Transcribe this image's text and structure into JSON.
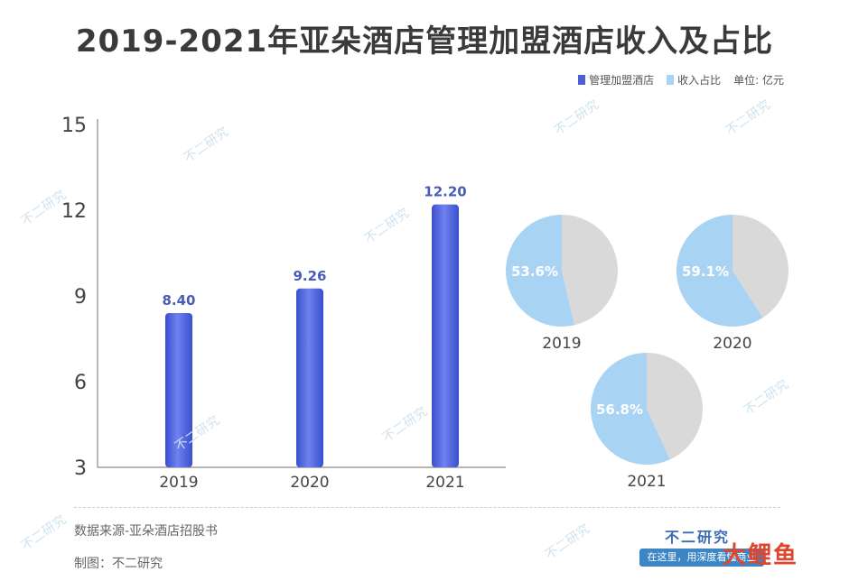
{
  "header": {
    "title": "2019-2021年亚朵酒店管理加盟酒店收入及占比"
  },
  "legend": {
    "items": [
      {
        "label": "管理加盟酒店",
        "color": "#4b5fd6"
      },
      {
        "label": "收入占比",
        "color": "#a9d3f3"
      }
    ],
    "unit": "单位: 亿元"
  },
  "chart_data": [
    {
      "type": "bar",
      "categories": [
        "2019",
        "2020",
        "2021"
      ],
      "values": [
        8.4,
        9.26,
        12.2
      ],
      "data_labels": [
        "8.40",
        "9.26",
        "12.20"
      ],
      "yticks": [
        "3",
        "6",
        "9",
        "12",
        "15"
      ],
      "ylim": [
        3,
        15
      ],
      "grid": false,
      "bar_color": "#4b5fd6",
      "label_color": "#4a5cb8"
    },
    {
      "type": "pie",
      "pies": [
        {
          "year": "2019",
          "share": 53.6,
          "label": "53.6%"
        },
        {
          "year": "2020",
          "share": 59.1,
          "label": "59.1%"
        },
        {
          "year": "2021",
          "share": 56.8,
          "label": "56.8%"
        }
      ],
      "share_color": "#a9d3f3",
      "rest_color": "#d9d9d9"
    }
  ],
  "footer": {
    "source": "数据来源-亚朵酒店招股书",
    "credit": "制图：不二研究"
  },
  "brand": {
    "name": "不二研究",
    "slogan": "在这里，用深度看懂商业",
    "corner_logo": "大鲤鱼"
  },
  "watermark": "不二研究"
}
